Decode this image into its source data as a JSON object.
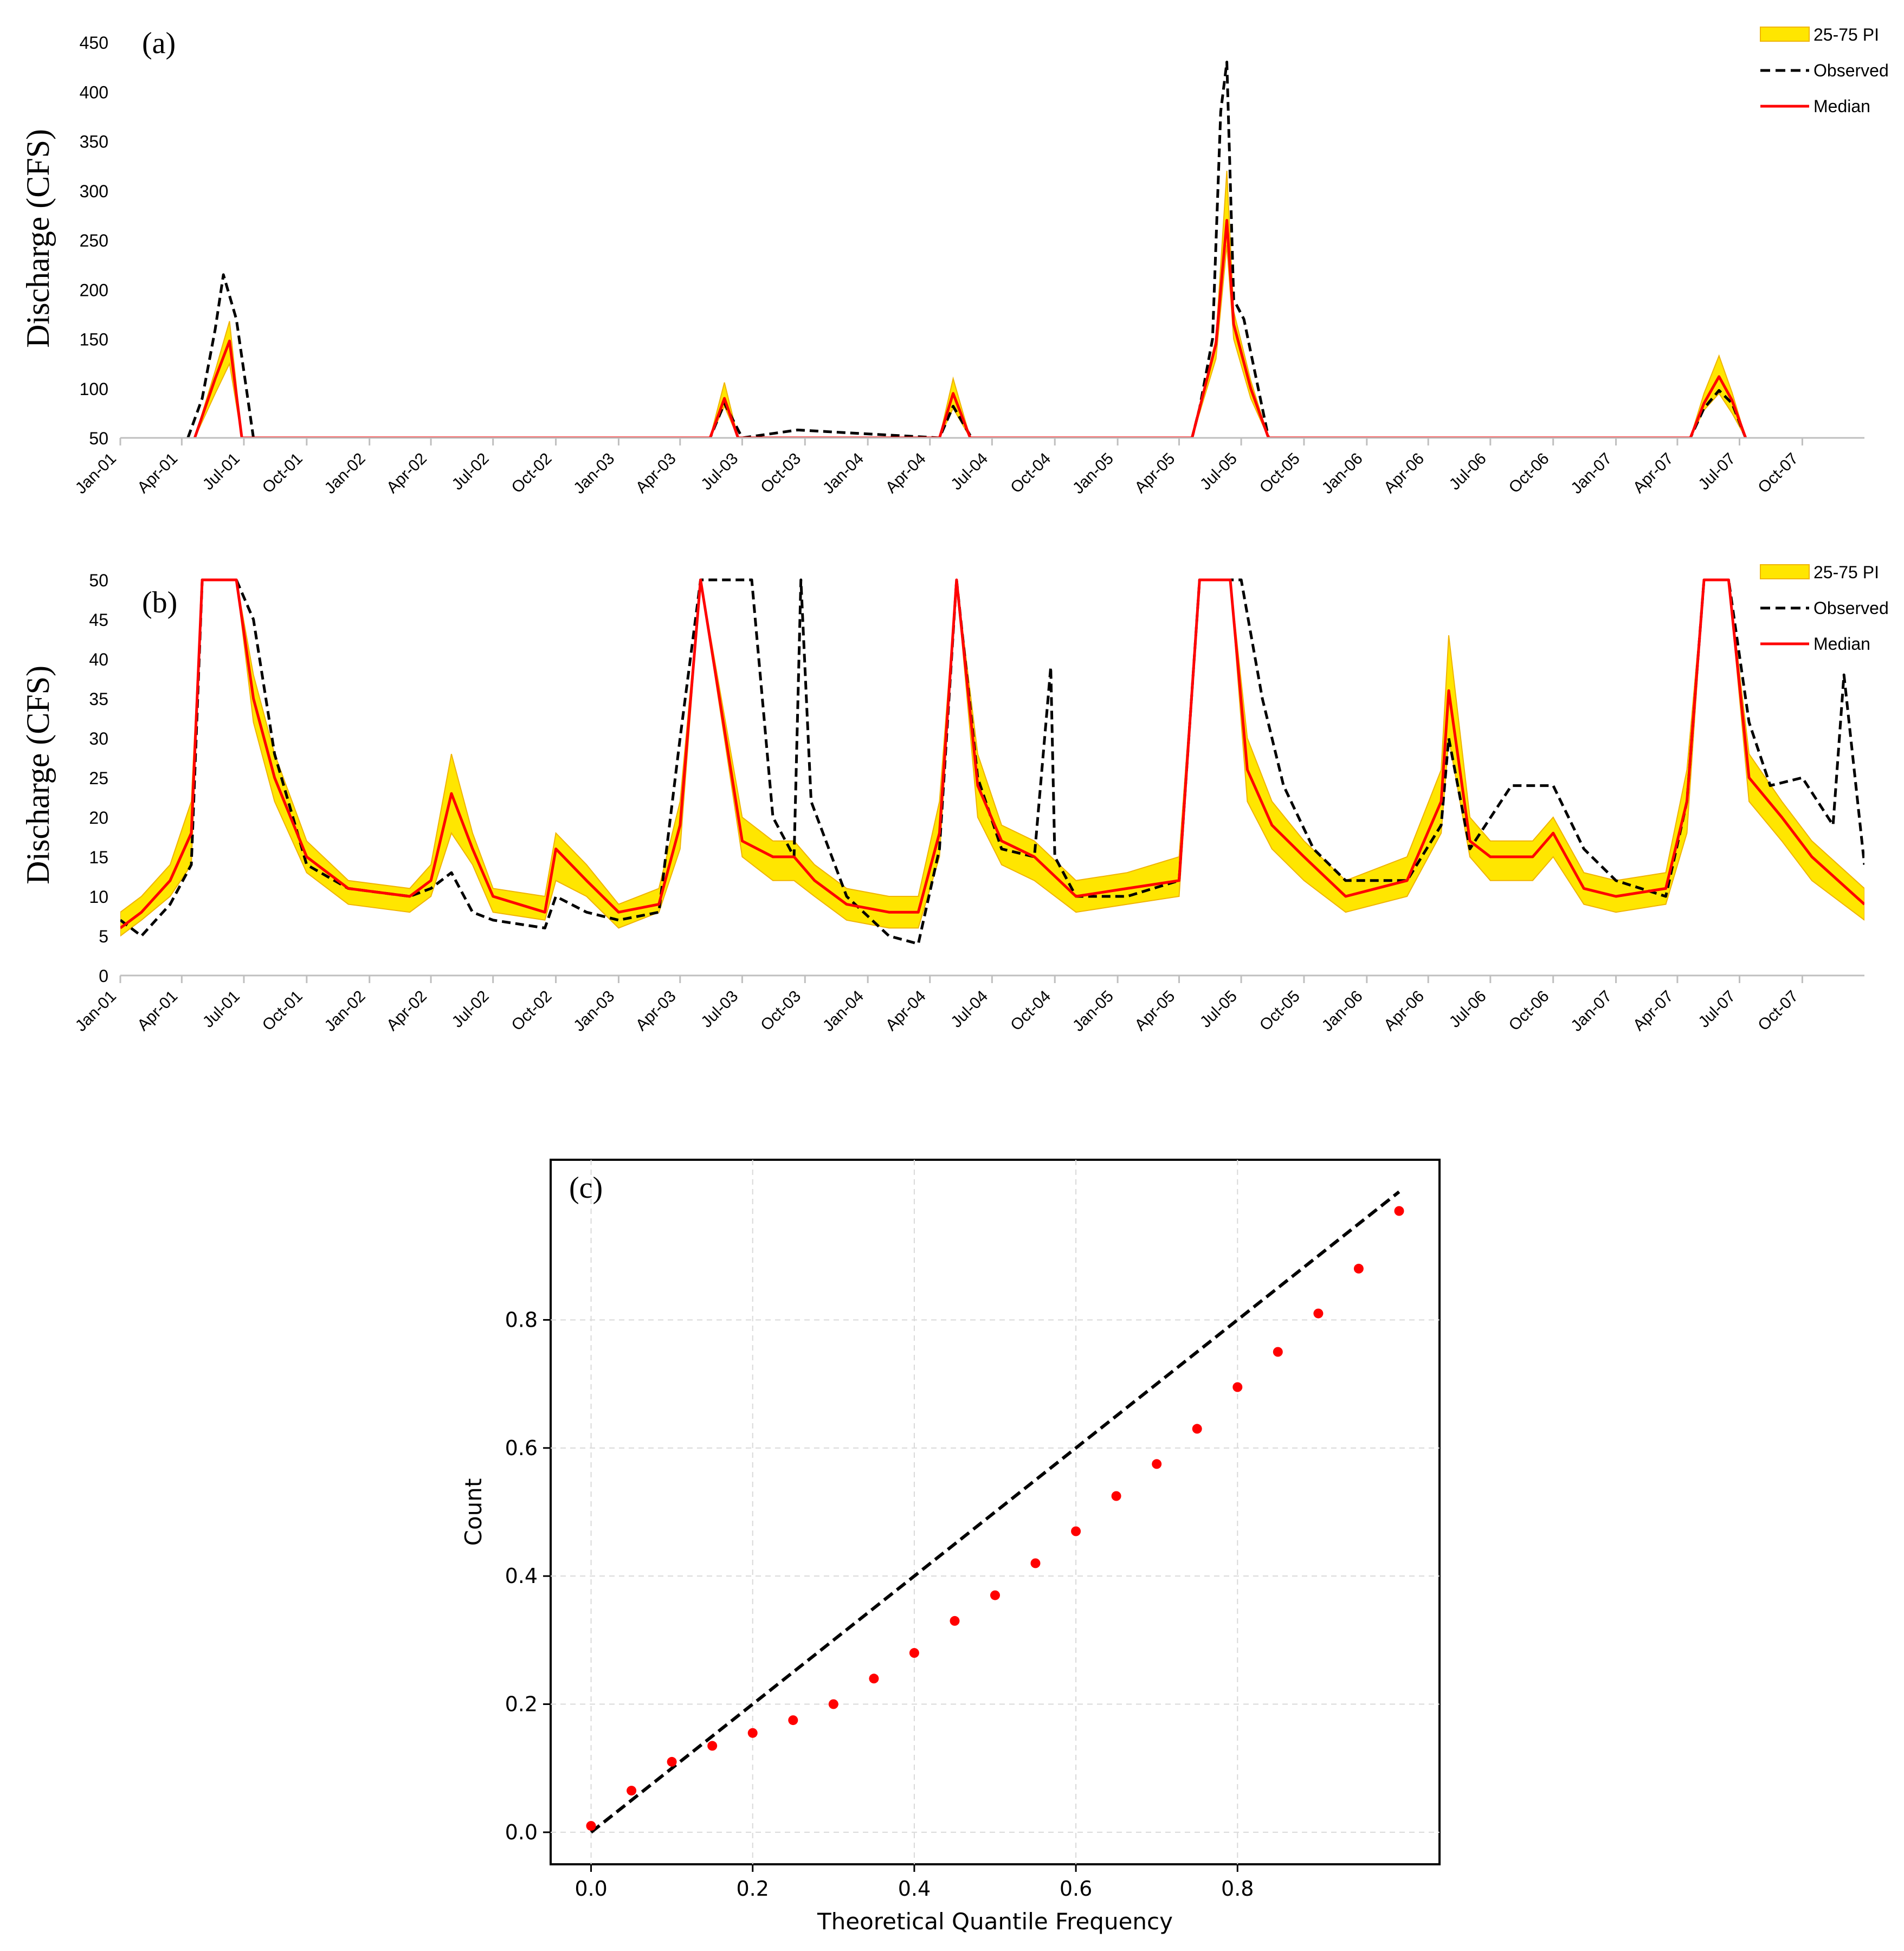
{
  "chart_data": [
    {
      "panel": "(a)",
      "type": "line",
      "ylabel": "Discharge (CFS)",
      "xlabel": "",
      "ylim": [
        50,
        450
      ],
      "yticks": [
        50,
        100,
        150,
        200,
        250,
        300,
        350,
        400,
        450
      ],
      "xlim": [
        "2001-01-01",
        "2007-12-31"
      ],
      "xticks": [
        "Jan-01",
        "Apr-01",
        "Jul-01",
        "Oct-01",
        "Jan-02",
        "Apr-02",
        "Jul-02",
        "Oct-02",
        "Jan-03",
        "Apr-03",
        "Jul-03",
        "Oct-03",
        "Jan-04",
        "Apr-04",
        "Jul-04",
        "Oct-04",
        "Jan-05",
        "Apr-05",
        "Jul-05",
        "Oct-05",
        "Jan-06",
        "Apr-06",
        "Jul-06",
        "Oct-06",
        "Jan-07",
        "Apr-07",
        "Jul-07",
        "Oct-07"
      ],
      "grid": false,
      "legend": {
        "placement": "top-right",
        "entries": [
          "25-75 PI",
          "Observed",
          "Median"
        ]
      },
      "series": [
        {
          "name": "25-75 PI",
          "style": "band",
          "color": "#FFE600",
          "edge": "#F0B400",
          "x": [
            "2001-04-20",
            "2001-05-20",
            "2001-06-10",
            "2001-06-28",
            "2003-05-15",
            "2003-06-05",
            "2003-06-25",
            "2004-04-15",
            "2004-05-05",
            "2004-05-30",
            "2005-04-20",
            "2005-05-25",
            "2005-06-10",
            "2005-06-20",
            "2005-07-15",
            "2005-08-10",
            "2007-04-20",
            "2007-05-10",
            "2007-06-01",
            "2007-06-20",
            "2007-07-10"
          ],
          "lower": [
            50,
            95,
            125,
            50,
            50,
            82,
            50,
            50,
            80,
            50,
            50,
            130,
            245,
            150,
            90,
            50,
            50,
            78,
            95,
            75,
            50
          ],
          "upper": [
            50,
            118,
            168,
            50,
            50,
            106,
            50,
            50,
            110,
            50,
            50,
            150,
            320,
            178,
            108,
            50,
            50,
            95,
            133,
            96,
            50
          ]
        },
        {
          "name": "Observed",
          "style": "dashed",
          "color": "#000000",
          "x": [
            "2001-04-10",
            "2001-05-01",
            "2001-05-20",
            "2001-06-01",
            "2001-06-20",
            "2001-07-15",
            "2003-05-15",
            "2003-06-05",
            "2003-07-01",
            "2003-09-20",
            "2004-04-15",
            "2004-05-05",
            "2004-06-01",
            "2005-04-20",
            "2005-05-01",
            "2005-05-20",
            "2005-06-01",
            "2005-06-10",
            "2005-06-20",
            "2005-07-05",
            "2005-07-20",
            "2005-08-10",
            "2007-04-20",
            "2007-05-10",
            "2007-06-01",
            "2007-06-20",
            "2007-07-10"
          ],
          "values": [
            50,
            90,
            160,
            215,
            170,
            50,
            50,
            85,
            50,
            58,
            50,
            82,
            50,
            50,
            80,
            150,
            380,
            430,
            190,
            170,
            120,
            50,
            50,
            80,
            98,
            85,
            50
          ]
        },
        {
          "name": "Median",
          "style": "solid",
          "color": "#FF0000",
          "x": [
            "2001-04-20",
            "2001-05-20",
            "2001-06-10",
            "2001-06-28",
            "2003-05-15",
            "2003-06-05",
            "2003-06-25",
            "2004-04-15",
            "2004-05-05",
            "2004-05-30",
            "2005-04-20",
            "2005-05-25",
            "2005-06-10",
            "2005-06-20",
            "2005-07-15",
            "2005-08-10",
            "2007-04-20",
            "2007-05-10",
            "2007-06-01",
            "2007-06-20",
            "2007-07-10"
          ],
          "values": [
            50,
            110,
            148,
            50,
            50,
            90,
            50,
            50,
            95,
            50,
            50,
            145,
            270,
            165,
            100,
            50,
            50,
            85,
            112,
            88,
            50
          ]
        }
      ]
    },
    {
      "panel": "(b)",
      "type": "line",
      "ylabel": "Discharge (CFS)",
      "xlabel": "",
      "ylim": [
        0,
        50
      ],
      "yticks": [
        0,
        5,
        10,
        15,
        20,
        25,
        30,
        35,
        40,
        45,
        50
      ],
      "xlim": [
        "2001-01-01",
        "2007-12-31"
      ],
      "xticks": [
        "Jan-01",
        "Apr-01",
        "Jul-01",
        "Oct-01",
        "Jan-02",
        "Apr-02",
        "Jul-02",
        "Oct-02",
        "Jan-03",
        "Apr-03",
        "Jul-03",
        "Oct-03",
        "Jan-04",
        "Apr-04",
        "Jul-04",
        "Oct-04",
        "Jan-05",
        "Apr-05",
        "Jul-05",
        "Oct-05",
        "Jan-06",
        "Apr-06",
        "Jul-06",
        "Oct-06",
        "Jan-07",
        "Apr-07",
        "Jul-07",
        "Oct-07"
      ],
      "grid": false,
      "legend": {
        "placement": "top-right",
        "entries": [
          "25-75 PI",
          "Observed",
          "Median"
        ]
      },
      "series": [
        {
          "name": "25-75 PI",
          "style": "band",
          "color": "#FFE600",
          "edge": "#F0B400",
          "x": [
            "2001-01-01",
            "2001-02-01",
            "2001-03-15",
            "2001-04-15",
            "2001-05-01",
            "2001-06-20",
            "2001-07-15",
            "2001-08-15",
            "2001-10-01",
            "2001-12-01",
            "2002-03-01",
            "2002-04-01",
            "2002-05-01",
            "2002-06-01",
            "2002-07-01",
            "2002-09-15",
            "2002-10-01",
            "2002-11-15",
            "2003-01-01",
            "2003-03-01",
            "2003-04-01",
            "2003-05-01",
            "2003-07-01",
            "2003-08-15",
            "2003-09-15",
            "2003-10-15",
            "2003-12-01",
            "2004-02-01",
            "2004-03-15",
            "2004-04-15",
            "2004-05-10",
            "2004-06-10",
            "2004-07-15",
            "2004-09-01",
            "2004-11-01",
            "2005-01-15",
            "2005-04-01",
            "2005-05-01",
            "2005-06-15",
            "2005-07-10",
            "2005-08-15",
            "2005-10-01",
            "2005-12-01",
            "2006-03-01",
            "2006-04-20",
            "2006-05-01",
            "2006-06-01",
            "2006-07-01",
            "2006-09-01",
            "2006-10-01",
            "2006-11-15",
            "2007-01-01",
            "2007-03-15",
            "2007-04-15",
            "2007-05-10",
            "2007-06-15",
            "2007-07-15",
            "2007-09-01",
            "2007-10-15",
            "2007-12-31"
          ],
          "lower": [
            5,
            7,
            10,
            14,
            50,
            50,
            32,
            22,
            13,
            9,
            8,
            10,
            18,
            14,
            8,
            7,
            12,
            10,
            6,
            8,
            16,
            50,
            15,
            12,
            12,
            10,
            7,
            6,
            6,
            15,
            50,
            20,
            14,
            12,
            8,
            9,
            10,
            50,
            50,
            22,
            16,
            12,
            8,
            10,
            18,
            30,
            15,
            12,
            12,
            15,
            9,
            8,
            9,
            18,
            50,
            50,
            22,
            17,
            12,
            7
          ],
          "upper": [
            8,
            10,
            14,
            22,
            50,
            50,
            38,
            28,
            17,
            12,
            11,
            14,
            28,
            18,
            11,
            10,
            18,
            14,
            9,
            11,
            22,
            50,
            20,
            17,
            17,
            14,
            11,
            10,
            10,
            22,
            50,
            28,
            19,
            17,
            12,
            13,
            15,
            50,
            50,
            30,
            22,
            17,
            12,
            15,
            26,
            43,
            20,
            17,
            17,
            20,
            13,
            12,
            13,
            26,
            50,
            50,
            28,
            22,
            17,
            11
          ]
        },
        {
          "name": "Observed",
          "style": "dashed",
          "color": "#000000",
          "x": [
            "2001-01-01",
            "2001-02-01",
            "2001-03-15",
            "2001-04-15",
            "2001-05-01",
            "2001-06-20",
            "2001-07-15",
            "2001-08-15",
            "2001-10-01",
            "2001-12-01",
            "2002-03-01",
            "2002-04-01",
            "2002-05-01",
            "2002-06-01",
            "2002-07-01",
            "2002-09-15",
            "2002-10-01",
            "2002-11-15",
            "2003-01-01",
            "2003-03-01",
            "2003-04-01",
            "2003-05-01",
            "2003-07-15",
            "2003-08-15",
            "2003-09-15",
            "2003-09-25",
            "2003-10-10",
            "2003-12-01",
            "2004-02-01",
            "2004-03-15",
            "2004-04-15",
            "2004-05-10",
            "2004-06-10",
            "2004-07-15",
            "2004-09-01",
            "2004-09-25",
            "2004-10-01",
            "2004-11-01",
            "2005-01-15",
            "2005-04-01",
            "2005-05-01",
            "2005-07-01",
            "2005-08-01",
            "2005-09-01",
            "2005-10-15",
            "2005-12-01",
            "2006-03-01",
            "2006-04-20",
            "2006-05-01",
            "2006-06-01",
            "2006-08-01",
            "2006-10-01",
            "2006-11-15",
            "2007-01-01",
            "2007-03-15",
            "2007-04-15",
            "2007-05-10",
            "2007-06-15",
            "2007-07-15",
            "2007-08-15",
            "2007-10-01",
            "2007-11-15",
            "2007-12-01",
            "2007-12-31"
          ],
          "values": [
            7,
            5,
            9,
            14,
            50,
            50,
            45,
            28,
            14,
            11,
            10,
            11,
            13,
            8,
            7,
            6,
            10,
            8,
            7,
            8,
            30,
            50,
            50,
            20,
            15,
            50,
            22,
            10,
            5,
            4,
            16,
            50,
            25,
            16,
            15,
            39,
            15,
            10,
            10,
            12,
            50,
            50,
            35,
            24,
            16,
            12,
            12,
            19,
            30,
            16,
            24,
            24,
            16,
            12,
            10,
            22,
            50,
            50,
            32,
            24,
            25,
            19,
            38,
            14
          ]
        },
        {
          "name": "Median",
          "style": "solid",
          "color": "#FF0000",
          "x": [
            "2001-01-01",
            "2001-02-01",
            "2001-03-15",
            "2001-04-15",
            "2001-05-01",
            "2001-06-20",
            "2001-07-15",
            "2001-08-15",
            "2001-10-01",
            "2001-12-01",
            "2002-03-01",
            "2002-04-01",
            "2002-05-01",
            "2002-06-01",
            "2002-07-01",
            "2002-09-15",
            "2002-10-01",
            "2002-11-15",
            "2003-01-01",
            "2003-03-01",
            "2003-04-01",
            "2003-05-01",
            "2003-07-01",
            "2003-08-15",
            "2003-09-15",
            "2003-10-15",
            "2003-12-01",
            "2004-02-01",
            "2004-03-15",
            "2004-04-15",
            "2004-05-10",
            "2004-06-10",
            "2004-07-15",
            "2004-09-01",
            "2004-11-01",
            "2005-01-15",
            "2005-04-01",
            "2005-05-01",
            "2005-06-15",
            "2005-07-10",
            "2005-08-15",
            "2005-10-01",
            "2005-12-01",
            "2006-03-01",
            "2006-04-20",
            "2006-05-01",
            "2006-06-01",
            "2006-07-01",
            "2006-09-01",
            "2006-10-01",
            "2006-11-15",
            "2007-01-01",
            "2007-03-15",
            "2007-04-15",
            "2007-05-10",
            "2007-06-15",
            "2007-07-15",
            "2007-09-01",
            "2007-10-15",
            "2007-12-31"
          ],
          "values": [
            6,
            8,
            12,
            18,
            50,
            50,
            35,
            25,
            15,
            11,
            10,
            12,
            23,
            16,
            10,
            8,
            16,
            12,
            8,
            9,
            19,
            50,
            17,
            15,
            15,
            12,
            9,
            8,
            8,
            18,
            50,
            24,
            17,
            15,
            10,
            11,
            12,
            50,
            50,
            26,
            19,
            15,
            10,
            12,
            22,
            36,
            17,
            15,
            15,
            18,
            11,
            10,
            11,
            22,
            50,
            50,
            25,
            20,
            15,
            9
          ]
        }
      ]
    },
    {
      "panel": "(c)",
      "type": "scatter",
      "xlabel": "Theoretical Quantile Frequency",
      "ylabel": "Count",
      "xlim": [
        -0.05,
        1.05
      ],
      "ylim": [
        -0.05,
        1.05
      ],
      "xticks": [
        "0.0",
        "0.2",
        "0.4",
        "0.6",
        "0.8"
      ],
      "yticks": [
        "0.0",
        "0.2",
        "0.4",
        "0.6",
        "0.8"
      ],
      "grid": true,
      "reference_line": {
        "x": [
          0,
          1
        ],
        "y": [
          0,
          1
        ],
        "style": "dashed",
        "color": "#000000"
      },
      "series": [
        {
          "color": "#FF0000",
          "x": [
            0.0,
            0.05,
            0.1,
            0.15,
            0.2,
            0.25,
            0.3,
            0.35,
            0.4,
            0.45,
            0.5,
            0.55,
            0.6,
            0.65,
            0.7,
            0.75,
            0.8,
            0.85,
            0.9,
            0.95,
            1.0
          ],
          "y": [
            0.01,
            0.065,
            0.11,
            0.135,
            0.155,
            0.175,
            0.2,
            0.24,
            0.28,
            0.33,
            0.37,
            0.42,
            0.47,
            0.525,
            0.575,
            0.63,
            0.695,
            0.75,
            0.81,
            0.88,
            0.97
          ]
        }
      ]
    }
  ]
}
